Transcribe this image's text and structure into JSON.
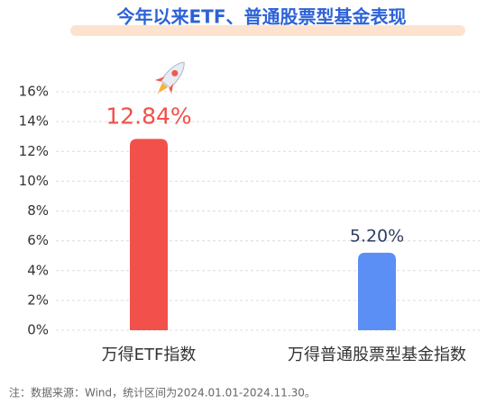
{
  "chart_data": {
    "type": "bar",
    "title": "今年以来ETF、普通股票型基金表现",
    "categories": [
      "万得ETF指数",
      "万得普通股票型基金指数"
    ],
    "values": [
      12.84,
      5.2
    ],
    "value_labels": [
      "12.84%",
      "5.20%"
    ],
    "colors": [
      "#f2504a",
      "#5b8ff5"
    ],
    "label_colors": [
      "#f2504a",
      "#2f3f60"
    ],
    "ylim": [
      0,
      16
    ],
    "yticks": [
      {
        "value": 0,
        "label": "0%"
      },
      {
        "value": 2,
        "label": "2%"
      },
      {
        "value": 4,
        "label": "4%"
      },
      {
        "value": 6,
        "label": "6%"
      },
      {
        "value": 8,
        "label": "8%"
      },
      {
        "value": 10,
        "label": "10%"
      },
      {
        "value": 12,
        "label": "12%"
      },
      {
        "value": 14,
        "label": "14%"
      },
      {
        "value": 16,
        "label": "16%"
      }
    ],
    "grid": true,
    "note": "注：数据来源：Wind，统计区间为2024.01.01-2024.11.30。"
  }
}
